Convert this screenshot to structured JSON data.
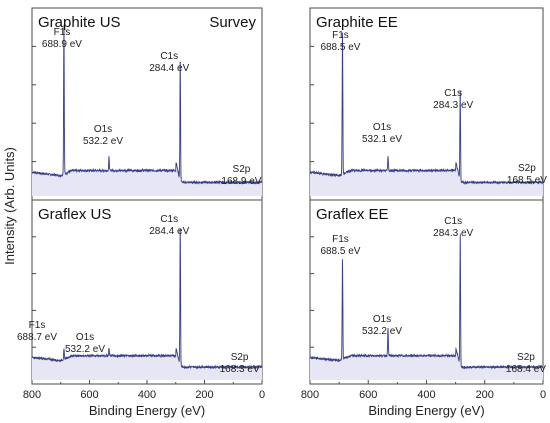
{
  "chart_data": {
    "type": "line",
    "ylabel": "Intensity (Arb. Units)",
    "xlabel": "Binding Energy (eV)",
    "xlim": [
      800,
      0
    ],
    "xticks": [
      "800",
      "600",
      "400",
      "200",
      "0"
    ],
    "line_color": "#3a3f8a",
    "fill_color": "#e6e6f5",
    "columns": [
      {
        "panels": [
          {
            "title": "Graphite US",
            "extra_title": "Survey",
            "baseline": 0.12,
            "peaks": [
              {
                "be": 688.9,
                "height": 0.88,
                "label": "F1s",
                "value": "688.9 eV"
              },
              {
                "be": 532.2,
                "height": 0.08,
                "label": "O1s",
                "value": "532.2 eV"
              },
              {
                "be": 284.4,
                "height": 0.74,
                "label": "C1s",
                "value": "284.4 eV"
              },
              {
                "be": 168.9,
                "height": 0.0,
                "label": "S2p",
                "value": "168.9 eV"
              }
            ]
          },
          {
            "title": "Graflex US",
            "extra_title": "",
            "baseline": 0.12,
            "peaks": [
              {
                "be": 688.7,
                "height": 0.06,
                "label": "F1s",
                "value": "688.7 eV"
              },
              {
                "be": 532.2,
                "height": 0.05,
                "label": "O1s",
                "value": "532.2 eV"
              },
              {
                "be": 284.4,
                "height": 0.9,
                "label": "C1s",
                "value": "284.4 eV"
              },
              {
                "be": 168.3,
                "height": 0.0,
                "label": "S2p",
                "value": "168.3 eV"
              }
            ]
          }
        ]
      },
      {
        "panels": [
          {
            "title": "Graphite EE",
            "extra_title": "",
            "baseline": 0.12,
            "peaks": [
              {
                "be": 688.5,
                "height": 0.86,
                "label": "F1s",
                "value": "688.5 eV"
              },
              {
                "be": 532.1,
                "height": 0.09,
                "label": "O1s",
                "value": "532.1 eV"
              },
              {
                "be": 284.3,
                "height": 0.55,
                "label": "C1s",
                "value": "284.3 eV"
              },
              {
                "be": 168.5,
                "height": 0.0,
                "label": "S2p",
                "value": "168.5 eV"
              }
            ]
          },
          {
            "title": "Graflex EE",
            "extra_title": "",
            "baseline": 0.12,
            "peaks": [
              {
                "be": 688.5,
                "height": 0.64,
                "label": "F1s",
                "value": "688.5 eV"
              },
              {
                "be": 532.2,
                "height": 0.18,
                "label": "O1s",
                "value": "532.2 eV"
              },
              {
                "be": 284.3,
                "height": 0.84,
                "label": "C1s",
                "value": "284.3 eV"
              },
              {
                "be": 168.4,
                "height": 0.0,
                "label": "S2p",
                "value": "168.4 eV"
              }
            ]
          }
        ]
      }
    ]
  }
}
